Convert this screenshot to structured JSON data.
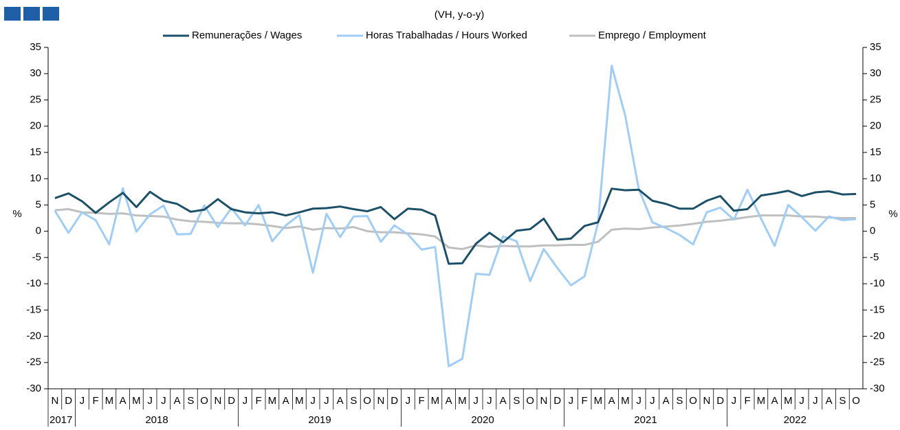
{
  "chart_data": {
    "type": "line",
    "subtitle": "(VH, y-o-y)",
    "y_label": "%",
    "y2_label": "%",
    "categories": [
      "N",
      "D",
      "J",
      "F",
      "M",
      "A",
      "M",
      "J",
      "J",
      "A",
      "S",
      "O",
      "N",
      "D",
      "J",
      "F",
      "M",
      "A",
      "M",
      "J",
      "J",
      "A",
      "S",
      "O",
      "N",
      "D",
      "J",
      "F",
      "M",
      "A",
      "M",
      "J",
      "J",
      "A",
      "S",
      "O",
      "N",
      "D",
      "J",
      "F",
      "M",
      "A",
      "M",
      "J",
      "J",
      "A",
      "S",
      "O",
      "N",
      "D",
      "J",
      "F",
      "M",
      "A",
      "M",
      "J",
      "J",
      "A",
      "S",
      "O"
    ],
    "years": [
      "2017",
      "2018",
      "2019",
      "2020",
      "2021",
      "2022"
    ],
    "ylim": [
      -30,
      35
    ],
    "yticks": [
      -30,
      -25,
      -20,
      -15,
      -10,
      -5,
      0,
      5,
      10,
      15,
      20,
      25,
      30,
      35
    ],
    "y2lim": [
      -30,
      35
    ],
    "y2ticks": [
      -30,
      -25,
      -20,
      -15,
      -10,
      -5,
      0,
      5,
      10,
      15,
      20,
      25,
      30,
      35
    ],
    "series": [
      {
        "name": "Remunerações / Wages",
        "color": "#1b5068",
        "values": [
          6.3,
          7.2,
          5.7,
          3.5,
          5.5,
          7.3,
          4.6,
          7.5,
          5.8,
          5.2,
          3.7,
          4.1,
          6.1,
          4.2,
          3.6,
          3.4,
          3.6,
          3.0,
          3.6,
          4.3,
          4.4,
          4.7,
          4.2,
          3.8,
          4.6,
          2.3,
          4.3,
          4.1,
          3.0,
          -6.2,
          -6.1,
          -2.4,
          -0.3,
          -2.1,
          0.1,
          0.4,
          2.4,
          -1.6,
          -1.4,
          1.0,
          1.7,
          8.1,
          7.8,
          7.9,
          5.8,
          5.2,
          4.3,
          4.3,
          5.8,
          6.7,
          3.9,
          4.2,
          6.8,
          7.2,
          7.7,
          6.7,
          7.4,
          7.6,
          7.0,
          7.1
        ]
      },
      {
        "name": "Horas Trabalhadas / Hours Worked",
        "color": "#9fcdf5",
        "values": [
          3.9,
          -0.3,
          3.6,
          2.1,
          -2.5,
          8.2,
          -0.1,
          3.2,
          4.9,
          -0.6,
          -0.5,
          4.9,
          0.8,
          4.4,
          1.1,
          5.0,
          -1.9,
          1.1,
          3.1,
          -7.9,
          3.3,
          -1.1,
          2.8,
          2.9,
          -2.0,
          1.1,
          -0.6,
          -3.5,
          -3.0,
          -25.7,
          -24.3,
          -8.1,
          -8.3,
          -1.0,
          -1.9,
          -9.5,
          -3.4,
          -7.0,
          -10.3,
          -8.6,
          1.6,
          31.5,
          22.0,
          8.0,
          1.7,
          0.6,
          -0.7,
          -2.5,
          3.6,
          4.5,
          2.2,
          7.9,
          2.4,
          -2.8,
          5.0,
          2.7,
          0.1,
          2.8,
          2.1,
          2.3
        ]
      },
      {
        "name": "Emprego / Employment",
        "color": "#bfbfbf",
        "values": [
          4.0,
          4.2,
          3.6,
          3.5,
          3.3,
          3.4,
          3.0,
          2.9,
          2.8,
          2.2,
          1.9,
          1.8,
          1.6,
          1.5,
          1.5,
          1.3,
          1.0,
          0.6,
          0.9,
          0.3,
          0.6,
          0.5,
          0.8,
          0.0,
          -0.2,
          -0.2,
          -0.4,
          -0.6,
          -1.0,
          -3.1,
          -3.4,
          -2.7,
          -3.0,
          -2.8,
          -2.9,
          -2.9,
          -2.7,
          -2.7,
          -2.6,
          -2.6,
          -2.0,
          0.3,
          0.5,
          0.4,
          0.7,
          0.9,
          1.1,
          1.4,
          1.8,
          2.0,
          2.3,
          2.7,
          3.0,
          3.0,
          3.0,
          2.8,
          2.8,
          2.6,
          2.5,
          2.5
        ]
      }
    ]
  }
}
